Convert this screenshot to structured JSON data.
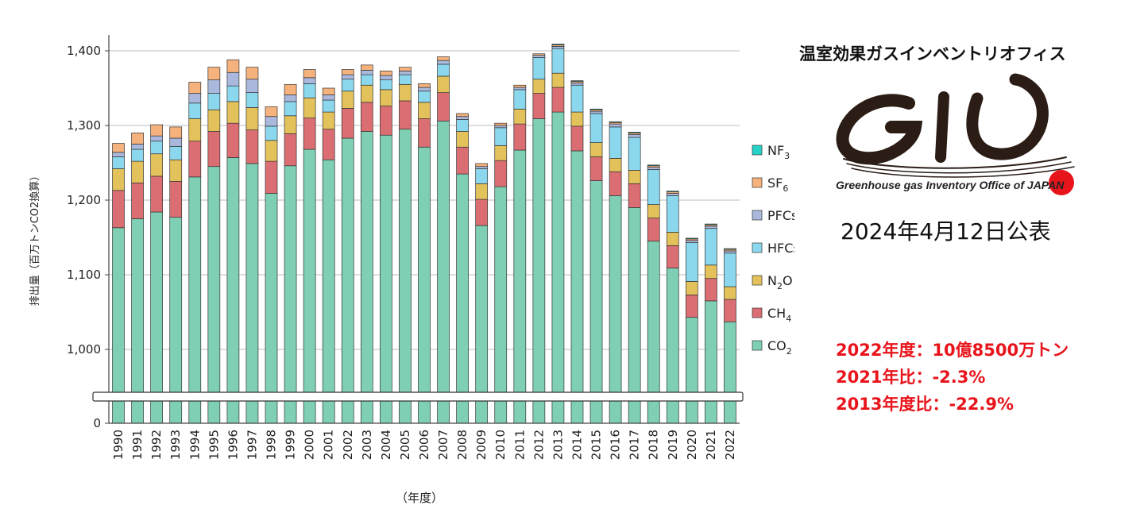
{
  "header": {
    "org_title": "温室効果ガスインベントリオフィス",
    "logo_text": "GIO",
    "logo_subtitle": "Greenhouse gas Inventory Office of JAPAN",
    "publish_date": "2024年4月12日公表"
  },
  "stats": {
    "line1": "2022年度：10億8500万トン",
    "line2": "2021年比：-2.3%",
    "line3": "2013年度比：-22.9%"
  },
  "colors": {
    "CO2": "#7ecfb3",
    "CH4": "#db6e73",
    "N2O": "#e3c25b",
    "HFCs": "#8bd8ee",
    "PFCs": "#a9b8dc",
    "SF6": "#f6b27c",
    "NF3": "#27d3c9",
    "stats_red": "#e8141b"
  },
  "chart_data": {
    "type": "bar",
    "stacked": true,
    "title": "",
    "ylabel": "排出量（百万トンCO2換算）",
    "xlabel": "（年度）",
    "ylim": [
      0,
      1400
    ],
    "axis_break": true,
    "display_range": [
      1000,
      1400
    ],
    "y_ticks": [
      0,
      1000,
      1100,
      1200,
      1300,
      1400
    ],
    "y_tick_labels": [
      "0",
      "1,000",
      "1,100",
      "1,200",
      "1,300",
      "1,400"
    ],
    "grid": true,
    "legend_position": "right",
    "categories": [
      "1990",
      "1991",
      "1992",
      "1993",
      "1994",
      "1995",
      "1996",
      "1997",
      "1998",
      "1999",
      "2000",
      "2001",
      "2002",
      "2003",
      "2004",
      "2005",
      "2006",
      "2007",
      "2008",
      "2009",
      "2010",
      "2011",
      "2012",
      "2013",
      "2014",
      "2015",
      "2016",
      "2017",
      "2018",
      "2019",
      "2020",
      "2021",
      "2022"
    ],
    "series": [
      {
        "name": "CO2",
        "label": "CO",
        "sub": "2",
        "values": [
          1163,
          1175,
          1184,
          1177,
          1231,
          1245,
          1257,
          1249,
          1209,
          1246,
          1268,
          1254,
          1283,
          1292,
          1287,
          1295,
          1271,
          1306,
          1235,
          1166,
          1218,
          1267,
          1309,
          1318,
          1266,
          1226,
          1206,
          1190,
          1145,
          1109,
          1043,
          1065,
          1037
        ]
      },
      {
        "name": "CH4",
        "label": "CH",
        "sub": "4",
        "values": [
          50,
          48,
          48,
          48,
          48,
          47,
          46,
          45,
          43,
          43,
          42,
          41,
          40,
          39,
          39,
          38,
          38,
          38,
          36,
          35,
          35,
          35,
          34,
          33,
          33,
          32,
          32,
          32,
          31,
          30,
          30,
          30,
          30
        ]
      },
      {
        "name": "N2O",
        "label": "N",
        "sub": "2",
        "suffix": "O",
        "values": [
          29,
          29,
          30,
          29,
          30,
          29,
          29,
          30,
          28,
          24,
          27,
          23,
          23,
          23,
          22,
          22,
          22,
          22,
          21,
          21,
          20,
          20,
          19,
          19,
          19,
          19,
          18,
          18,
          18,
          18,
          18,
          18,
          17
        ]
      },
      {
        "name": "HFCs",
        "label": "HFCs",
        "values": [
          16,
          16,
          17,
          18,
          21,
          22,
          21,
          20,
          19,
          19,
          19,
          16,
          16,
          14,
          13,
          13,
          15,
          16,
          16,
          20,
          24,
          26,
          29,
          33,
          36,
          39,
          42,
          44,
          47,
          49,
          52,
          49,
          45
        ]
      },
      {
        "name": "PFCs",
        "label": "PFCs",
        "values": [
          6,
          7,
          7,
          11,
          13,
          18,
          18,
          18,
          13,
          9,
          8,
          7,
          6,
          6,
          6,
          5,
          5,
          5,
          4,
          3,
          3,
          3,
          3,
          3,
          3,
          3,
          4,
          4,
          3,
          3,
          3,
          3,
          3
        ]
      },
      {
        "name": "SF6",
        "label": "SF",
        "sub": "6",
        "values": [
          12,
          15,
          15,
          15,
          15,
          17,
          17,
          16,
          13,
          14,
          11,
          9,
          7,
          7,
          6,
          5,
          5,
          5,
          4,
          4,
          3,
          3,
          2,
          2,
          2,
          2,
          2,
          2,
          2,
          2,
          2,
          2,
          2
        ]
      },
      {
        "name": "NF3",
        "label": "NF",
        "sub": "3",
        "values": [
          0,
          0,
          0,
          0,
          0,
          0,
          0,
          0,
          0,
          0,
          0,
          0,
          0,
          0,
          0,
          0,
          0,
          0,
          0,
          0,
          0,
          0,
          0,
          1,
          1,
          1,
          1,
          1,
          1,
          1,
          1,
          1,
          1
        ]
      }
    ]
  }
}
